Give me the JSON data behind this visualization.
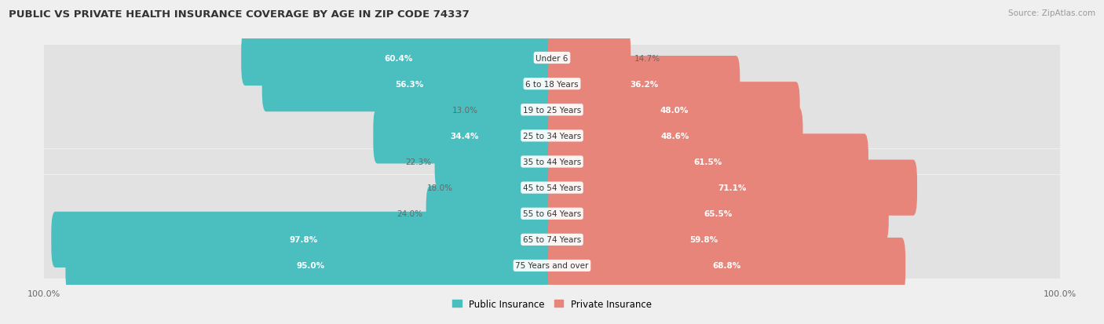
{
  "title": "PUBLIC VS PRIVATE HEALTH INSURANCE COVERAGE BY AGE IN ZIP CODE 74337",
  "source": "Source: ZipAtlas.com",
  "categories": [
    "Under 6",
    "6 to 18 Years",
    "19 to 25 Years",
    "25 to 34 Years",
    "35 to 44 Years",
    "45 to 54 Years",
    "55 to 64 Years",
    "65 to 74 Years",
    "75 Years and over"
  ],
  "public_values": [
    60.4,
    56.3,
    13.0,
    34.4,
    22.3,
    18.0,
    24.0,
    97.8,
    95.0
  ],
  "private_values": [
    14.7,
    36.2,
    48.0,
    48.6,
    61.5,
    71.1,
    65.5,
    59.8,
    68.8
  ],
  "public_color": "#4BBFBF",
  "private_color": "#E8857A",
  "bg_color": "#efefef",
  "bar_bg_color": "#e2e2e2",
  "title_color": "#333333",
  "source_color": "#999999",
  "bar_height": 0.55,
  "max_value": 100.0,
  "legend_labels": [
    "Public Insurance",
    "Private Insurance"
  ],
  "label_threshold": 30,
  "inside_label_color": "white",
  "outside_label_color": "#666666",
  "center_label_color": "#333333",
  "center_label_bg": "white",
  "x_tick_labels": [
    "100.0%",
    "",
    "100.0%"
  ]
}
